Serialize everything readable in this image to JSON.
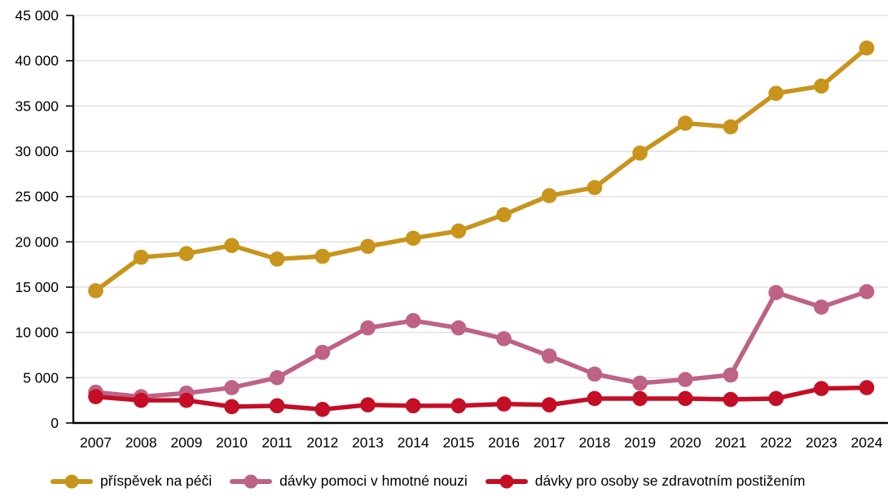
{
  "chart_data": {
    "type": "line",
    "x": [
      "2007",
      "2008",
      "2009",
      "2010",
      "2011",
      "2012",
      "2013",
      "2014",
      "2015",
      "2016",
      "2017",
      "2018",
      "2019",
      "2020",
      "2021",
      "2022",
      "2023",
      "2024"
    ],
    "series": [
      {
        "name": "příspěvek na péči",
        "color": "#C8941C",
        "values": [
          14600,
          18300,
          18700,
          19600,
          18100,
          18400,
          19500,
          20400,
          21200,
          23000,
          25100,
          26000,
          29800,
          33100,
          32700,
          36400,
          37200,
          41400
        ]
      },
      {
        "name": "dávky pomoci v hmotné nouzi",
        "color": "#BE6286",
        "values": [
          3400,
          2900,
          3300,
          3900,
          5000,
          7800,
          10500,
          11300,
          10500,
          9300,
          7400,
          5400,
          4400,
          4800,
          5300,
          14400,
          12800,
          14500
        ]
      },
      {
        "name": "dávky pro osoby se zdravotním postižením",
        "color": "#C40E26",
        "values": [
          2900,
          2500,
          2500,
          1800,
          1900,
          1500,
          2000,
          1900,
          1900,
          2100,
          2000,
          2700,
          2700,
          2700,
          2600,
          2700,
          3800,
          3900
        ]
      }
    ],
    "ylim": [
      0,
      45000
    ],
    "y_tick_step": 5000,
    "y_tick_labels": [
      "0",
      "5 000",
      "10 000",
      "15 000",
      "20 000",
      "25 000",
      "30 000",
      "35 000",
      "40 000",
      "45 000"
    ],
    "grid": "horizontal-light-gray",
    "gridline_color": "#D9D9D9",
    "axis_color": "#000000",
    "legend_position": "bottom"
  }
}
